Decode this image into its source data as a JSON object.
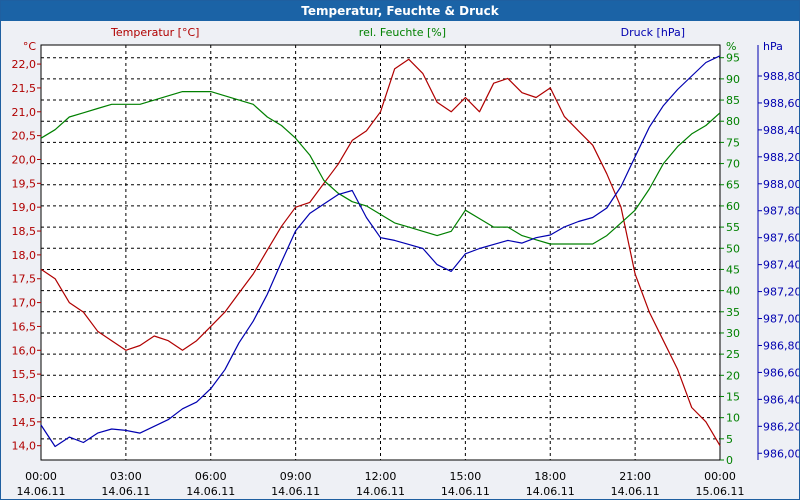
{
  "window": {
    "title": "Temperatur, Feuchte & Druck"
  },
  "chart_data": {
    "type": "line",
    "title": "Temperatur, Feuchte & Druck",
    "grid": true,
    "x": {
      "ticks": [
        {
          "time": "00:00",
          "date": "14.06.11"
        },
        {
          "time": "03:00",
          "date": "14.06.11"
        },
        {
          "time": "06:00",
          "date": "14.06.11"
        },
        {
          "time": "09:00",
          "date": "14.06.11"
        },
        {
          "time": "12:00",
          "date": "14.06.11"
        },
        {
          "time": "15:00",
          "date": "14.06.11"
        },
        {
          "time": "18:00",
          "date": "14.06.11"
        },
        {
          "time": "21:00",
          "date": "14.06.11"
        },
        {
          "time": "00:00",
          "date": "15.06.11"
        }
      ],
      "range_hours": [
        0,
        24
      ]
    },
    "axes": {
      "temperature": {
        "label": "Temperatur [°C]",
        "unit": "°C",
        "color": "#b00000",
        "range": [
          13.7,
          22.4
        ],
        "ticks": [
          "14,0",
          "14,5",
          "15,0",
          "15,5",
          "16,0",
          "16,5",
          "17,0",
          "17,5",
          "18,0",
          "18,5",
          "19,0",
          "19,5",
          "20,0",
          "20,5",
          "21,0",
          "21,5",
          "22,0"
        ]
      },
      "humidity": {
        "label": "rel. Feuchte [%]",
        "unit": "%",
        "color": "#008000",
        "range": [
          0,
          98
        ],
        "ticks": [
          "0",
          "5",
          "10",
          "15",
          "20",
          "25",
          "30",
          "35",
          "40",
          "45",
          "50",
          "55",
          "60",
          "65",
          "70",
          "75",
          "80",
          "85",
          "90",
          "95"
        ]
      },
      "pressure": {
        "label": "Druck [hPa]",
        "unit": "hPa",
        "color": "#0000b0",
        "range": [
          985.95,
          989.03
        ],
        "ticks": [
          "986,00",
          "986,20",
          "986,40",
          "986,60",
          "986,80",
          "987,00",
          "987,20",
          "987,40",
          "987,60",
          "987,80",
          "988,00",
          "988,20",
          "988,40",
          "988,60",
          "988,80"
        ]
      }
    },
    "series": [
      {
        "name": "Temperatur [°C]",
        "axis": "temperature",
        "color": "#b00000",
        "x": [
          0,
          0.5,
          1,
          1.5,
          2,
          2.5,
          3,
          3.5,
          4,
          4.5,
          5,
          5.5,
          6,
          6.5,
          7,
          7.5,
          8,
          8.5,
          9,
          9.5,
          10,
          10.5,
          11,
          11.5,
          12,
          12.5,
          13,
          13.5,
          14,
          14.5,
          15,
          15.5,
          16,
          16.5,
          17,
          17.5,
          18,
          18.5,
          19,
          19.5,
          20,
          20.5,
          21,
          21.5,
          22,
          22.5,
          23,
          23.5,
          24
        ],
        "values": [
          17.7,
          17.5,
          17.0,
          16.8,
          16.4,
          16.2,
          16.0,
          16.1,
          16.3,
          16.2,
          16.0,
          16.2,
          16.5,
          16.8,
          17.2,
          17.6,
          18.1,
          18.6,
          19.0,
          19.1,
          19.5,
          19.9,
          20.4,
          20.6,
          21.0,
          21.9,
          22.1,
          21.8,
          21.2,
          21.0,
          21.3,
          21.0,
          21.6,
          21.7,
          21.4,
          21.3,
          21.5,
          20.9,
          20.6,
          20.3,
          19.7,
          19.0,
          17.6,
          16.8,
          16.2,
          15.6,
          14.8,
          14.5,
          14.0
        ]
      },
      {
        "name": "rel. Feuchte [%]",
        "axis": "humidity",
        "color": "#008000",
        "x": [
          0,
          0.5,
          1,
          1.5,
          2,
          2.5,
          3,
          3.5,
          4,
          4.5,
          5,
          5.5,
          6,
          6.5,
          7,
          7.5,
          8,
          8.5,
          9,
          9.5,
          10,
          10.5,
          11,
          11.5,
          12,
          12.5,
          13,
          13.5,
          14,
          14.5,
          15,
          15.5,
          16,
          16.5,
          17,
          17.5,
          18,
          18.5,
          19,
          19.5,
          20,
          20.5,
          21,
          21.5,
          22,
          22.5,
          23,
          23.5,
          24
        ],
        "values": [
          76,
          78,
          81,
          82,
          83,
          84,
          84,
          84,
          85,
          86,
          87,
          87,
          87,
          86,
          85,
          84,
          81,
          79,
          76,
          72,
          66,
          63,
          61,
          60,
          58,
          56,
          55,
          54,
          53,
          54,
          59,
          57,
          55,
          55,
          53,
          52,
          51,
          51,
          51,
          51,
          53,
          56,
          59,
          64,
          70,
          74,
          77,
          79,
          82
        ]
      },
      {
        "name": "Druck [hPa]",
        "axis": "pressure",
        "color": "#0000b0",
        "x": [
          0,
          0.5,
          1,
          1.5,
          2,
          2.5,
          3,
          3.5,
          4,
          4.5,
          5,
          5.5,
          6,
          6.5,
          7,
          7.5,
          8,
          8.5,
          9,
          9.5,
          10,
          10.5,
          11,
          11.5,
          12,
          12.5,
          13,
          13.5,
          14,
          14.5,
          15,
          15.5,
          16,
          16.5,
          17,
          17.5,
          18,
          18.5,
          19,
          19.5,
          20,
          20.5,
          21,
          21.5,
          22,
          22.5,
          23,
          23.5,
          24
        ],
        "values": [
          986.21,
          986.05,
          986.12,
          986.08,
          986.15,
          986.18,
          986.17,
          986.15,
          986.2,
          986.25,
          986.33,
          986.38,
          986.48,
          986.62,
          986.82,
          986.98,
          987.18,
          987.42,
          987.65,
          987.78,
          987.85,
          987.92,
          987.95,
          987.75,
          987.6,
          987.58,
          987.55,
          987.52,
          987.4,
          987.35,
          987.48,
          987.52,
          987.55,
          987.58,
          987.56,
          987.6,
          987.62,
          987.68,
          987.72,
          987.75,
          987.82,
          987.98,
          988.2,
          988.42,
          988.58,
          988.7,
          988.8,
          988.9,
          988.95
        ]
      }
    ]
  }
}
